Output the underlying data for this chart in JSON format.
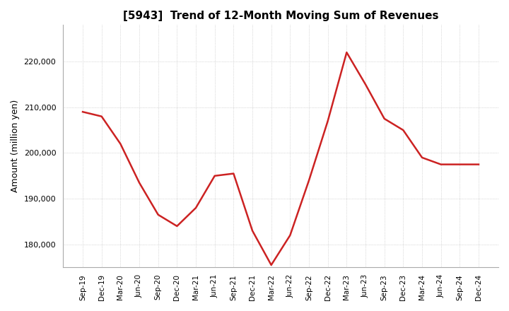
{
  "title": "[5943]  Trend of 12-Month Moving Sum of Revenues",
  "ylabel": "Amount (million yen)",
  "background_color": "#ffffff",
  "grid_color": "#bbbbbb",
  "line_color": "#cc2222",
  "ylim": [
    175000,
    228000
  ],
  "yticks": [
    180000,
    190000,
    200000,
    210000,
    220000
  ],
  "labels": [
    "Sep-19",
    "Dec-19",
    "Mar-20",
    "Jun-20",
    "Sep-20",
    "Dec-20",
    "Mar-21",
    "Jun-21",
    "Sep-21",
    "Dec-21",
    "Mar-22",
    "Jun-22",
    "Sep-22",
    "Dec-22",
    "Mar-23",
    "Jun-23",
    "Sep-23",
    "Dec-23",
    "Mar-24",
    "Jun-24",
    "Sep-24",
    "Dec-24"
  ],
  "values": [
    209000,
    208000,
    202000,
    193500,
    186500,
    184000,
    188000,
    195000,
    195500,
    183000,
    175500,
    182000,
    194000,
    207000,
    222000,
    215000,
    207500,
    205000,
    199000,
    197500,
    197500,
    197500
  ]
}
